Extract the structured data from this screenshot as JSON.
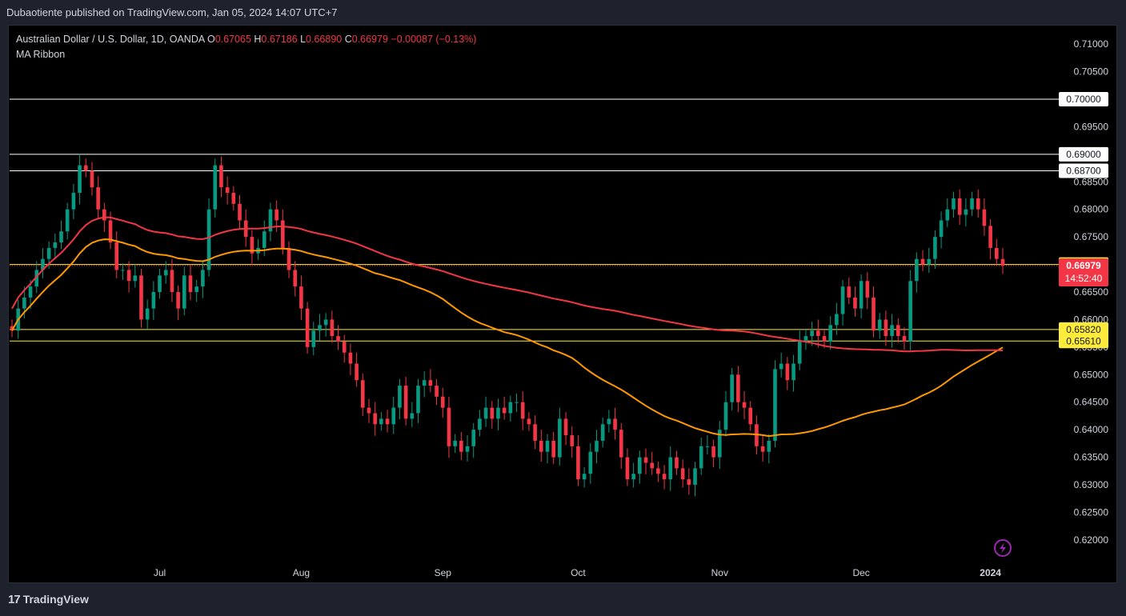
{
  "header": {
    "publisher_line": "Dubaotiente published on TradingView.com, Jan 05, 2024 14:07 UTC+7"
  },
  "legend": {
    "symbol": "Australian Dollar / U.S. Dollar, 1D, OANDA",
    "o_label": "O",
    "o_value": "0.67065",
    "h_label": "H",
    "h_value": "0.67186",
    "l_label": "L",
    "l_value": "0.66890",
    "c_label": "C",
    "c_value": "0.66979",
    "change": "−0.00087 (−0.13%)",
    "indicator": "MA Ribbon"
  },
  "footer": {
    "brand": "TradingView",
    "logo_text": "17"
  },
  "colors": {
    "up": "#089981",
    "down": "#f23645",
    "ma_fast": "#ff9800",
    "ma_slow": "#f23645",
    "level_yellow": "#ffeb3b",
    "background": "#000000",
    "price_label": "#f23645"
  },
  "chart_data": {
    "type": "candlestick",
    "symbol": "AUD/USD",
    "timeframe": "1D",
    "ylim": [
      0.6165,
      0.7135
    ],
    "y_ticks": [
      "0.71000",
      "0.70500",
      "0.70000",
      "0.69500",
      "0.69000",
      "0.68500",
      "0.68000",
      "0.67500",
      "0.67000",
      "0.66500",
      "0.66000",
      "0.65500",
      "0.65000",
      "0.64500",
      "0.64000",
      "0.63500",
      "0.63000",
      "0.62500",
      "0.62000"
    ],
    "x_labels": [
      {
        "label": "Jul",
        "index": 24
      },
      {
        "label": "Aug",
        "index": 47
      },
      {
        "label": "Sep",
        "index": 70
      },
      {
        "label": "Oct",
        "index": 92
      },
      {
        "label": "Nov",
        "index": 115
      },
      {
        "label": "Dec",
        "index": 138
      },
      {
        "label": "2024",
        "index": 159
      }
    ],
    "horizontal_levels": [
      {
        "price": 0.7,
        "label": "0.70000",
        "color": "#ffffff"
      },
      {
        "price": 0.69,
        "label": "0.69000",
        "color": "#ffffff"
      },
      {
        "price": 0.687,
        "label": "0.68700",
        "color": "#ffffff"
      },
      {
        "price": 0.67,
        "label": "0.67000",
        "color": "#ffeb3b"
      },
      {
        "price": 0.6582,
        "label": "0.65820",
        "color": "#ffeb3b"
      },
      {
        "price": 0.6561,
        "label": "0.65610",
        "color": "#ffeb3b"
      }
    ],
    "last_price": {
      "value": "0.66979",
      "countdown": "14:52:40"
    },
    "closes": [
      0.658,
      0.662,
      0.664,
      0.666,
      0.669,
      0.671,
      0.673,
      0.674,
      0.676,
      0.68,
      0.683,
      0.688,
      0.687,
      0.684,
      0.68,
      0.678,
      0.674,
      0.669,
      0.669,
      0.667,
      0.668,
      0.66,
      0.662,
      0.665,
      0.668,
      0.669,
      0.665,
      0.662,
      0.668,
      0.665,
      0.666,
      0.669,
      0.68,
      0.688,
      0.684,
      0.683,
      0.681,
      0.678,
      0.675,
      0.672,
      0.673,
      0.676,
      0.68,
      0.678,
      0.673,
      0.669,
      0.666,
      0.662,
      0.655,
      0.658,
      0.659,
      0.66,
      0.657,
      0.656,
      0.654,
      0.652,
      0.649,
      0.644,
      0.643,
      0.641,
      0.642,
      0.641,
      0.644,
      0.648,
      0.642,
      0.643,
      0.648,
      0.649,
      0.648,
      0.646,
      0.644,
      0.637,
      0.638,
      0.636,
      0.637,
      0.64,
      0.642,
      0.644,
      0.642,
      0.644,
      0.643,
      0.645,
      0.645,
      0.642,
      0.641,
      0.638,
      0.636,
      0.638,
      0.635,
      0.642,
      0.639,
      0.637,
      0.631,
      0.632,
      0.636,
      0.638,
      0.641,
      0.642,
      0.64,
      0.635,
      0.631,
      0.632,
      0.635,
      0.634,
      0.633,
      0.632,
      0.631,
      0.635,
      0.633,
      0.631,
      0.63,
      0.633,
      0.637,
      0.637,
      0.635,
      0.64,
      0.645,
      0.65,
      0.645,
      0.644,
      0.641,
      0.637,
      0.636,
      0.638,
      0.651,
      0.652,
      0.649,
      0.652,
      0.656,
      0.657,
      0.658,
      0.657,
      0.656,
      0.659,
      0.661,
      0.666,
      0.664,
      0.662,
      0.667,
      0.664,
      0.658,
      0.66,
      0.657,
      0.659,
      0.657,
      0.656,
      0.667,
      0.671,
      0.67,
      0.671,
      0.675,
      0.678,
      0.68,
      0.682,
      0.679,
      0.68,
      0.682,
      0.68,
      0.677,
      0.673,
      0.671,
      0.6698
    ]
  }
}
